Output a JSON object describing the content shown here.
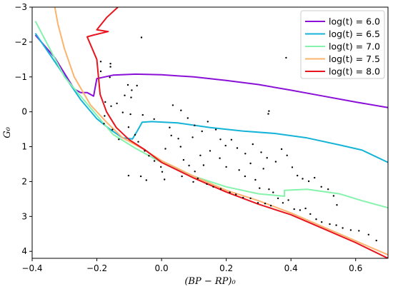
{
  "chart_data": {
    "type": "scatter",
    "xlabel": "(BP − RP)₀",
    "ylabel": "G₀",
    "xlim": [
      -0.4,
      0.7
    ],
    "ylim": [
      4.2,
      -3
    ],
    "y_inverted": true,
    "x_ticks": [
      -0.4,
      -0.2,
      0.0,
      0.2,
      0.4,
      0.6
    ],
    "x_tick_labels": [
      "−0.4",
      "−0.2",
      "0.0",
      "0.2",
      "0.4",
      "0.6"
    ],
    "y_ticks": [
      -3,
      -2,
      -1,
      0,
      1,
      2,
      3,
      4
    ],
    "y_tick_labels": [
      "−3",
      "−2",
      "−1",
      "0",
      "1",
      "2",
      "3",
      "4"
    ],
    "grid": false,
    "legend_position": "top-right",
    "series": [
      {
        "name": "log(t) = 6.0",
        "color": "#8a10d8",
        "points": [
          [
            -0.39,
            -2.2
          ],
          [
            -0.33,
            -1.55
          ],
          [
            -0.27,
            -0.65
          ],
          [
            -0.25,
            -0.55
          ],
          [
            -0.23,
            -0.55
          ],
          [
            -0.21,
            -0.45
          ],
          [
            -0.2,
            -0.95
          ],
          [
            -0.15,
            -1.05
          ],
          [
            -0.08,
            -1.08
          ],
          [
            0.0,
            -1.06
          ],
          [
            0.1,
            -1.0
          ],
          [
            0.2,
            -0.9
          ],
          [
            0.3,
            -0.78
          ],
          [
            0.4,
            -0.62
          ],
          [
            0.5,
            -0.45
          ],
          [
            0.6,
            -0.28
          ],
          [
            0.7,
            -0.12
          ]
        ]
      },
      {
        "name": "log(t) = 6.5",
        "color": "#14b4d8",
        "points": [
          [
            -0.39,
            -2.25
          ],
          [
            -0.32,
            -1.3
          ],
          [
            -0.25,
            -0.35
          ],
          [
            -0.2,
            0.2
          ],
          [
            -0.16,
            0.5
          ],
          [
            -0.12,
            0.75
          ],
          [
            -0.09,
            0.78
          ],
          [
            -0.075,
            0.55
          ],
          [
            -0.06,
            0.3
          ],
          [
            -0.03,
            0.28
          ],
          [
            0.05,
            0.32
          ],
          [
            0.15,
            0.45
          ],
          [
            0.25,
            0.55
          ],
          [
            0.35,
            0.62
          ],
          [
            0.45,
            0.75
          ],
          [
            0.55,
            0.95
          ],
          [
            0.62,
            1.1
          ],
          [
            0.7,
            1.45
          ]
        ]
      },
      {
        "name": "log(t) = 7.0",
        "color": "#86f3ad",
        "points": [
          [
            -0.39,
            -2.6
          ],
          [
            -0.3,
            -1.0
          ],
          [
            -0.2,
            0.1
          ],
          [
            -0.15,
            0.65
          ],
          [
            -0.08,
            1.05
          ],
          [
            0.0,
            1.45
          ],
          [
            0.1,
            1.85
          ],
          [
            0.2,
            2.15
          ],
          [
            0.3,
            2.35
          ],
          [
            0.38,
            2.42
          ],
          [
            0.38,
            2.25
          ],
          [
            0.45,
            2.22
          ],
          [
            0.55,
            2.35
          ],
          [
            0.62,
            2.55
          ],
          [
            0.7,
            2.75
          ]
        ]
      },
      {
        "name": "log(t) = 7.5",
        "color": "#fcb36e",
        "points": [
          [
            -0.33,
            -3.0
          ],
          [
            -0.32,
            -2.5
          ],
          [
            -0.3,
            -1.8
          ],
          [
            -0.27,
            -1.0
          ],
          [
            -0.22,
            -0.2
          ],
          [
            -0.17,
            0.3
          ],
          [
            -0.12,
            0.75
          ],
          [
            -0.06,
            1.05
          ],
          [
            0.0,
            1.4
          ],
          [
            0.1,
            1.85
          ],
          [
            0.2,
            2.25
          ],
          [
            0.3,
            2.55
          ],
          [
            0.4,
            2.9
          ],
          [
            0.5,
            3.3
          ],
          [
            0.6,
            3.7
          ],
          [
            0.7,
            4.1
          ]
        ]
      },
      {
        "name": "log(t) = 8.0",
        "color": "#e8141e",
        "points": [
          [
            -0.135,
            -3.0
          ],
          [
            -0.17,
            -2.7
          ],
          [
            -0.2,
            -2.35
          ],
          [
            -0.165,
            -2.3
          ],
          [
            -0.21,
            -2.2
          ],
          [
            -0.23,
            -2.15
          ],
          [
            -0.2,
            -1.5
          ],
          [
            -0.19,
            -0.5
          ],
          [
            -0.17,
            0.0
          ],
          [
            -0.14,
            0.45
          ],
          [
            -0.1,
            0.8
          ],
          [
            -0.05,
            1.1
          ],
          [
            0.0,
            1.45
          ],
          [
            0.1,
            1.9
          ],
          [
            0.2,
            2.3
          ],
          [
            0.3,
            2.65
          ],
          [
            0.4,
            2.95
          ],
          [
            0.5,
            3.35
          ],
          [
            0.6,
            3.75
          ],
          [
            0.7,
            4.2
          ]
        ]
      }
    ],
    "scatter_points": [
      [
        -0.188,
        -1.44
      ],
      [
        -0.158,
        -1.38
      ],
      [
        -0.158,
        -1.29
      ],
      [
        -0.188,
        -1.16
      ],
      [
        -0.16,
        -0.99
      ],
      [
        -0.104,
        -0.77
      ],
      [
        -0.076,
        -0.75
      ],
      [
        -0.092,
        -0.62
      ],
      [
        -0.114,
        -0.47
      ],
      [
        -0.094,
        -0.41
      ],
      [
        -0.174,
        -0.28
      ],
      [
        -0.138,
        -0.24
      ],
      [
        -0.156,
        -0.16
      ],
      [
        -0.12,
        0.02
      ],
      [
        -0.096,
        0.07
      ],
      [
        -0.058,
        0.09
      ],
      [
        -0.176,
        0.12
      ],
      [
        -0.178,
        0.34
      ],
      [
        -0.102,
        0.44
      ],
      [
        -0.152,
        0.51
      ],
      [
        -0.082,
        0.66
      ],
      [
        -0.072,
        0.86
      ],
      [
        -0.132,
        0.79
      ],
      [
        -0.052,
        1.12
      ],
      [
        -0.039,
        1.26
      ],
      [
        -0.022,
        1.41
      ],
      [
        -0.002,
        1.58
      ],
      [
        0.002,
        1.72
      ],
      [
        0.009,
        1.94
      ],
      [
        -0.047,
        1.96
      ],
      [
        -0.064,
        1.85
      ],
      [
        -0.102,
        1.83
      ],
      [
        -0.023,
        0.21
      ],
      [
        0.025,
        0.45
      ],
      [
        0.03,
        0.68
      ],
      [
        0.052,
        0.77
      ],
      [
        0.059,
        1.0
      ],
      [
        0.096,
        0.73
      ],
      [
        0.12,
        1.25
      ],
      [
        0.13,
        1.53
      ],
      [
        0.15,
        1.12
      ],
      [
        0.18,
        1.33
      ],
      [
        0.2,
        1.58
      ],
      [
        0.24,
        1.67
      ],
      [
        0.258,
        1.85
      ],
      [
        0.275,
        1.48
      ],
      [
        0.29,
        1.95
      ],
      [
        0.303,
        2.19
      ],
      [
        0.315,
        1.63
      ],
      [
        0.332,
        2.22
      ],
      [
        0.345,
        2.31
      ],
      [
        0.36,
        2.48
      ],
      [
        0.375,
        2.61
      ],
      [
        0.392,
        2.53
      ],
      [
        0.41,
        2.79
      ],
      [
        0.428,
        2.82
      ],
      [
        0.445,
        2.77
      ],
      [
        0.46,
        2.93
      ],
      [
        0.478,
        3.08
      ],
      [
        0.495,
        3.16
      ],
      [
        0.52,
        3.22
      ],
      [
        0.54,
        3.25
      ],
      [
        0.56,
        3.33
      ],
      [
        0.585,
        3.39
      ],
      [
        0.61,
        3.41
      ],
      [
        0.64,
        3.52
      ],
      [
        0.664,
        3.69
      ],
      [
        0.012,
        1.06
      ],
      [
        0.068,
        1.38
      ],
      [
        0.085,
        1.54
      ],
      [
        0.103,
        1.71
      ],
      [
        0.063,
        1.85
      ],
      [
        0.098,
        2.01
      ],
      [
        0.112,
        1.91
      ],
      [
        0.14,
        2.07
      ],
      [
        0.16,
        2.15
      ],
      [
        0.183,
        2.21
      ],
      [
        0.211,
        2.31
      ],
      [
        0.23,
        2.37
      ],
      [
        0.252,
        2.46
      ],
      [
        0.275,
        2.48
      ],
      [
        0.298,
        2.61
      ],
      [
        0.32,
        2.63
      ],
      [
        0.338,
        2.69
      ],
      [
        0.035,
        -0.19
      ],
      [
        0.06,
        -0.04
      ],
      [
        0.081,
        0.18
      ],
      [
        0.102,
        0.39
      ],
      [
        0.125,
        0.56
      ],
      [
        0.143,
        0.28
      ],
      [
        0.168,
        0.51
      ],
      [
        0.182,
        0.79
      ],
      [
        0.198,
        0.97
      ],
      [
        0.216,
        0.8
      ],
      [
        0.234,
        1.04
      ],
      [
        0.259,
        1.2
      ],
      [
        0.282,
        0.93
      ],
      [
        0.308,
        1.16
      ],
      [
        0.326,
        1.32
      ],
      [
        0.353,
        1.43
      ],
      [
        0.371,
        1.07
      ],
      [
        0.388,
        1.25
      ],
      [
        0.404,
        1.59
      ],
      [
        0.42,
        1.83
      ],
      [
        0.436,
        1.92
      ],
      [
        0.455,
        1.99
      ],
      [
        0.473,
        1.89
      ],
      [
        0.494,
        2.15
      ],
      [
        0.515,
        2.22
      ],
      [
        0.532,
        2.41
      ],
      [
        0.542,
        2.67
      ],
      [
        0.332,
        -0.02
      ],
      [
        0.33,
        0.06
      ],
      [
        -0.062,
        -2.13
      ],
      [
        0.385,
        -1.55
      ]
    ]
  },
  "legend": [
    {
      "label": "log(t) = 6.0",
      "color": "#8a10d8"
    },
    {
      "label": "log(t) = 6.5",
      "color": "#14b4d8"
    },
    {
      "label": "log(t) = 7.0",
      "color": "#86f3ad"
    },
    {
      "label": "log(t) = 7.5",
      "color": "#fcb36e"
    },
    {
      "label": "log(t) = 8.0",
      "color": "#e8141e"
    }
  ]
}
